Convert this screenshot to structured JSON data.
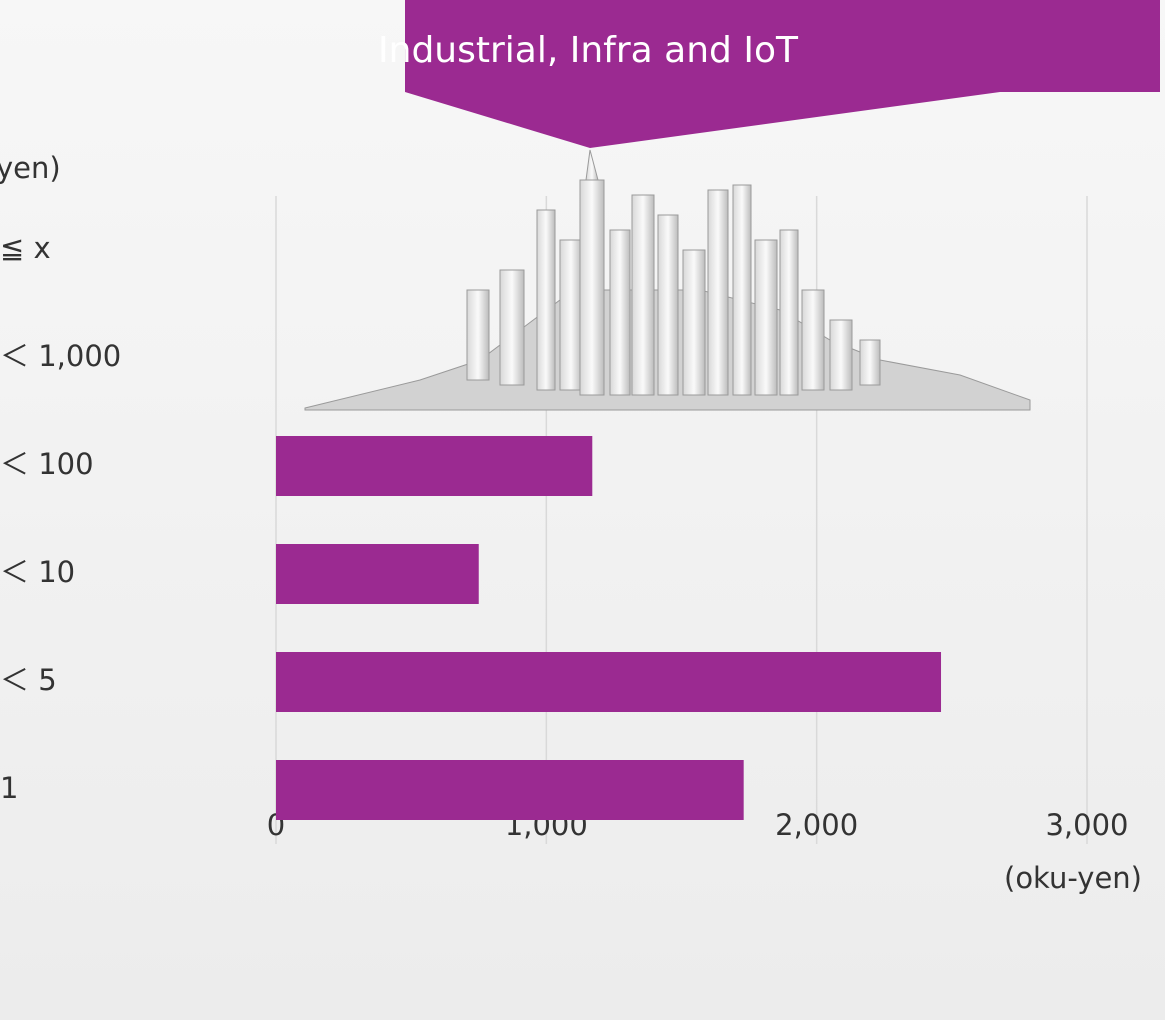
{
  "chart_data": {
    "type": "hbar",
    "title": "Industrial, Infra and IoT",
    "y_axis_label": "yen)",
    "x_axis_label": "(oku-yen)",
    "categories": [
      "≦ x",
      "＜ 1,000",
      "＜ 100",
      "＜ 10",
      "＜ 5",
      "1"
    ],
    "values": [
      null,
      null,
      1170,
      750,
      2460,
      1730
    ],
    "color": "#9b2a91",
    "xlim": [
      0,
      3000
    ],
    "xticks": [
      0,
      {
        "value": 1000,
        "label": "1,000"
      },
      {
        "value": 2000,
        "label": "2,000"
      },
      {
        "value": 3000,
        "label": "3,000"
      }
    ],
    "grid": true
  }
}
